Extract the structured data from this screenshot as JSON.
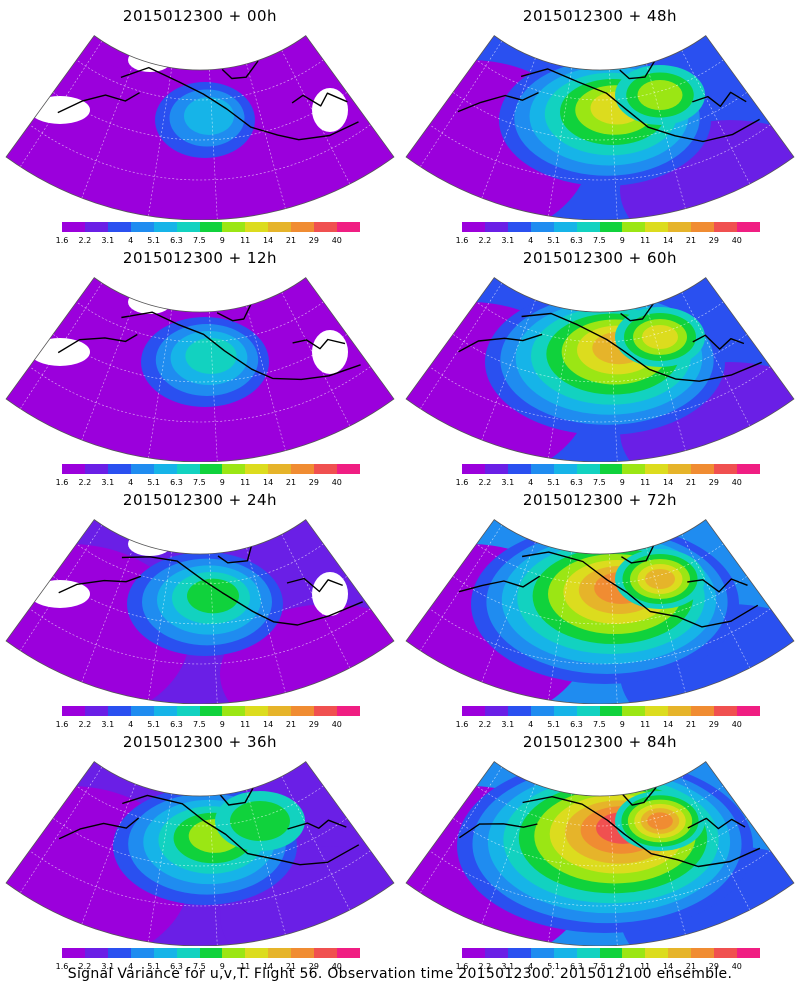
{
  "caption": "Signal Variance for u,v,T. Flight 56. Observation time 2015012300. 2015012100 ensemble.",
  "panels": [
    {
      "title": "2015012300 + 00h",
      "level": 0
    },
    {
      "title": "2015012300 + 48h",
      "level": 4
    },
    {
      "title": "2015012300 + 12h",
      "level": 1
    },
    {
      "title": "2015012300 + 60h",
      "level": 5
    },
    {
      "title": "2015012300 + 24h",
      "level": 2
    },
    {
      "title": "2015012300 + 72h",
      "level": 6
    },
    {
      "title": "2015012300 + 36h",
      "level": 3
    },
    {
      "title": "2015012300 + 84h",
      "level": 7
    }
  ],
  "colorbar": {
    "labels": [
      "1.6",
      "2.2",
      "3.1",
      "4",
      "5.1",
      "6.3",
      "7.5",
      "9",
      "11",
      "14",
      "21",
      "29",
      "40"
    ],
    "colors": [
      "#9b00dc",
      "#6a1fe6",
      "#2a50f0",
      "#1f8cf0",
      "#16b4e8",
      "#12d2c0",
      "#10d23c",
      "#9be614",
      "#dcdc1e",
      "#e6b42a",
      "#f08c32",
      "#f05050",
      "#f01e82"
    ]
  }
}
